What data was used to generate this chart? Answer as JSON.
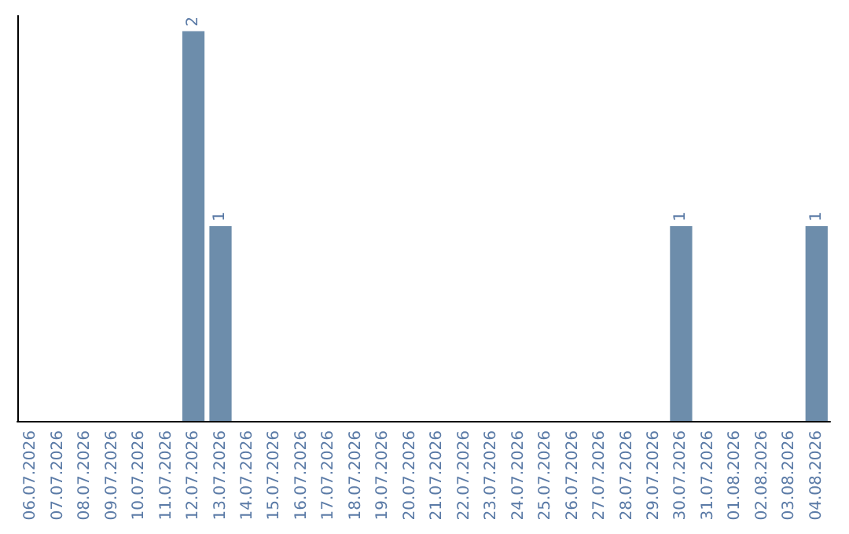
{
  "chart_data": {
    "type": "bar",
    "categories": [
      "06.07.2026",
      "07.07.2026",
      "08.07.2026",
      "09.07.2026",
      "10.07.2026",
      "11.07.2026",
      "12.07.2026",
      "13.07.2026",
      "14.07.2026",
      "15.07.2026",
      "16.07.2026",
      "17.07.2026",
      "18.07.2026",
      "19.07.2026",
      "20.07.2026",
      "21.07.2026",
      "22.07.2026",
      "23.07.2026",
      "24.07.2026",
      "25.07.2026",
      "26.07.2026",
      "27.07.2026",
      "28.07.2026",
      "29.07.2026",
      "30.07.2026",
      "31.07.2026",
      "01.08.2026",
      "02.08.2026",
      "03.08.2026",
      "04.08.2026"
    ],
    "values": [
      0,
      0,
      0,
      0,
      0,
      0,
      2,
      1,
      0,
      0,
      0,
      0,
      0,
      0,
      0,
      0,
      0,
      0,
      0,
      0,
      0,
      0,
      0,
      0,
      1,
      0,
      0,
      0,
      0,
      1
    ],
    "value_labels": [
      null,
      null,
      null,
      null,
      null,
      null,
      "2",
      "1",
      null,
      null,
      null,
      null,
      null,
      null,
      null,
      null,
      null,
      null,
      null,
      null,
      null,
      null,
      null,
      null,
      "1",
      null,
      null,
      null,
      null,
      "1"
    ],
    "color": "#6d8dab",
    "ylim": [
      0,
      2.08
    ],
    "tick_labels": "x"
  }
}
